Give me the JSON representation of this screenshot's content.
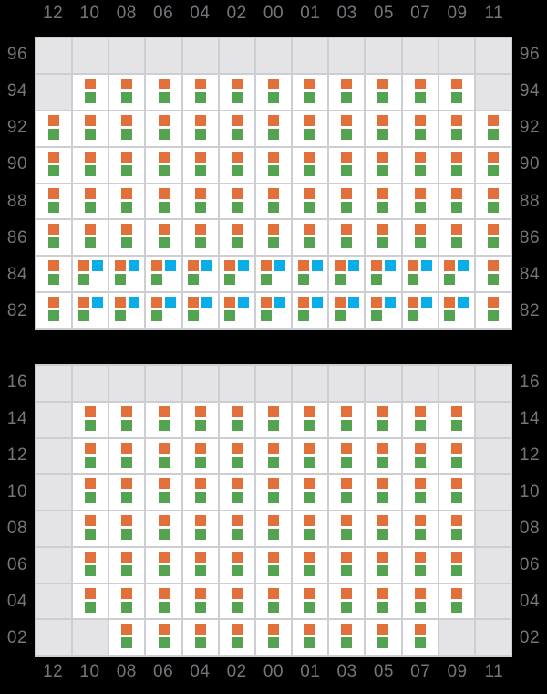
{
  "colors": {
    "background": "#000000",
    "grid_line": "#cdced2",
    "cell_filled": "#ffffff",
    "cell_empty": "#e4e4e7",
    "label_text": "#75757d",
    "marker_orange": "#e1703a",
    "marker_green": "#53a351",
    "marker_blue": "#09ade8"
  },
  "chart_data": {
    "type": "heatmap",
    "title": "",
    "x_labels": [
      "12",
      "10",
      "08",
      "06",
      "04",
      "02",
      "00",
      "01",
      "03",
      "05",
      "07",
      "09",
      "11"
    ],
    "x_labels_position": "top and bottom",
    "y_labels_position": "left and right",
    "grid": "on",
    "cell_legend": {
      "E": "empty gray cell (no markers)",
      "F": "white cell with orange marker over green marker",
      "B": "white cell with orange + blue markers on top row and green marker below"
    },
    "marker_legend": {
      "orange": "orange-square-marker",
      "green": "green-square-marker",
      "blue": "blue-square-marker"
    },
    "panels": [
      {
        "name": "upper",
        "y_labels": [
          "96",
          "94",
          "92",
          "90",
          "88",
          "86",
          "84",
          "82"
        ],
        "cells": [
          "EEEEEEEEEEEEE",
          "EFFFFFFFFFFFE",
          "FFFFFFFFFFFFF",
          "FFFFFFFFFFFFF",
          "FFFFFFFFFFFFF",
          "FFFFFFFFFFFFF",
          "FBBBBBBBBBBBF",
          "FBBBBBBBBBBBF"
        ]
      },
      {
        "name": "lower",
        "y_labels": [
          "16",
          "14",
          "12",
          "10",
          "08",
          "06",
          "04",
          "02"
        ],
        "cells": [
          "EEEEEEEEEEEEE",
          "EFFFFFFFFFFFE",
          "EFFFFFFFFFFFE",
          "EFFFFFFFFFFFE",
          "EFFFFFFFFFFFE",
          "EFFFFFFFFFFFE",
          "EFFFFFFFFFFFE",
          "EEFFFFFFFFFEE"
        ]
      }
    ]
  }
}
